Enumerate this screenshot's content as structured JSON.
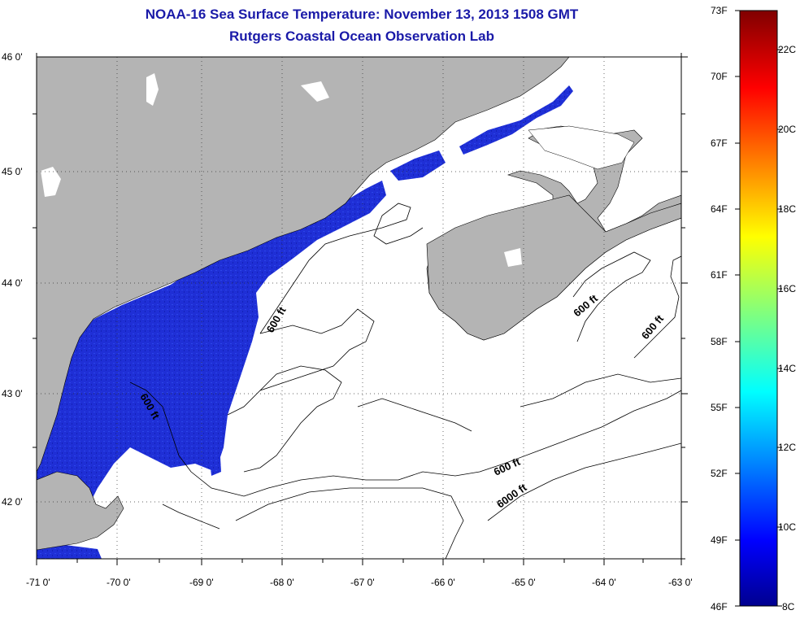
{
  "header": {
    "title": "NOAA-16 Sea Surface Temperature:  November 13, 2013 1508 GMT",
    "subtitle": "Rutgers Coastal Ocean Observation Lab"
  },
  "map": {
    "lon_labels": [
      "-71 0'",
      "-70 0'",
      "-69 0'",
      "-68 0'",
      "-67 0'",
      "-66 0'",
      "-65 0'",
      "-64 0'",
      "-63 0'"
    ],
    "lat_labels": [
      "46 0'",
      "45 0'",
      "44 0'",
      "43 0'",
      "42 0'"
    ],
    "lon_range": [
      -71,
      -63
    ],
    "lat_range": [
      41.5,
      46
    ],
    "contour_labels": [
      "600 ft",
      "600 ft",
      "600 ft",
      "600 ft",
      "600 ft",
      "6000 ft"
    ],
    "colors": {
      "land": "#b4b4b4",
      "water_nodata": "#ffffff",
      "sst_cold": "#1a2ad8"
    }
  },
  "colorbar": {
    "fahrenheit_labels": [
      "73F",
      "70F",
      "67F",
      "64F",
      "61F",
      "58F",
      "55F",
      "52F",
      "49F",
      "46F"
    ],
    "celsius_labels": [
      "22C",
      "20C",
      "18C",
      "16C",
      "14C",
      "12C",
      "10C",
      "8C"
    ],
    "range_f": [
      46,
      73
    ],
    "range_c": [
      8,
      23
    ]
  }
}
